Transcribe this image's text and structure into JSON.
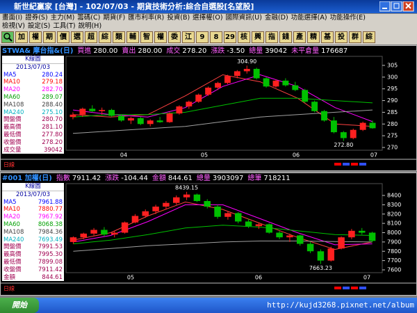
{
  "window": {
    "title": "新世紀贏家 [台灣] - 102/07/03 - 期貨技術分析:綜合自選股[名望股]"
  },
  "menu": {
    "row1": [
      "畫面(I)",
      "證券(S)",
      "主力(M)",
      "籌碼(C)",
      "期貨(F)",
      "匯市利率(R)",
      "投資(B)",
      "選擇權(O)",
      "國際資訊(U)",
      "金融(D)",
      "功能選擇(A)",
      "功能操作(E)"
    ],
    "row2": [
      "檢視(V)",
      "設定(S)",
      "工具(T)",
      "說明(H)"
    ]
  },
  "toolbar": [
    "加",
    "權",
    "期",
    "價",
    "選",
    "超",
    "綜",
    "類",
    "輔",
    "智",
    "權",
    "委",
    "江",
    "9",
    "8",
    "29",
    "核",
    "興",
    "指",
    "錢",
    "產",
    "精",
    "基",
    "投",
    "群",
    "綜"
  ],
  "panels": [
    {
      "header": {
        "symbol": "STWA& 摩台指&(日)",
        "fields": [
          {
            "label": "買進",
            "value": "280.00"
          },
          {
            "label": "賣出",
            "value": "280.00"
          },
          {
            "label": "成交",
            "value": "278.20"
          },
          {
            "label": "漲跌",
            "value": "-3.50"
          },
          {
            "label": "總量",
            "value": "39042"
          },
          {
            "label": "未平倉量",
            "value": "176687"
          }
        ]
      },
      "legend": {
        "title": "K線圖",
        "date": "2013/07/03",
        "items": [
          {
            "label": "MA5",
            "value": "280.24",
            "color": "#0000ff"
          },
          {
            "label": "MA10",
            "value": "279.18",
            "color": "#ff0000"
          },
          {
            "label": "MA20",
            "value": "282.70",
            "color": "#ff00ff"
          },
          {
            "label": "MA60",
            "value": "289.07",
            "color": "#00a000"
          },
          {
            "label": "MA108",
            "value": "288.40",
            "color": "#404040"
          },
          {
            "label": "MA240",
            "value": "275.10",
            "color": "#00b0c0"
          },
          {
            "label": "開盤價",
            "value": "280.70",
            "color": "#a00050"
          },
          {
            "label": "最高價",
            "value": "281.10",
            "color": "#a00050"
          },
          {
            "label": "最低價",
            "value": "277.80",
            "color": "#a00050"
          },
          {
            "label": "收盤價",
            "value": "278.20",
            "color": "#a00050"
          },
          {
            "label": "成交量",
            "value": "39042",
            "color": "#a00050"
          }
        ]
      },
      "yticks": [
        270,
        275,
        280,
        285,
        290,
        295,
        300,
        305
      ],
      "months": [
        "04",
        "05",
        "06",
        "07"
      ],
      "high": {
        "value": 304.9,
        "label": "304.90"
      },
      "low": {
        "value": 272.8,
        "label": "272.80"
      },
      "candles": [
        [
          283,
          285,
          282,
          284
        ],
        [
          284,
          287,
          283,
          286.5
        ],
        [
          286.5,
          288,
          285,
          285.5
        ],
        [
          285.5,
          287,
          284,
          286
        ],
        [
          286,
          286.5,
          283,
          283.5
        ],
        [
          283.5,
          284,
          281,
          281.5
        ],
        [
          281.5,
          283,
          280,
          282.5
        ],
        [
          282.5,
          283,
          279.5,
          280
        ],
        [
          280,
          282,
          279,
          281.5
        ],
        [
          281.5,
          283,
          280.5,
          280.8
        ],
        [
          280.8,
          285,
          280.5,
          284.5
        ],
        [
          284.5,
          288,
          284,
          287.5
        ],
        [
          287.5,
          290,
          286.5,
          289.5
        ],
        [
          289.5,
          293,
          289,
          292.5
        ],
        [
          292.5,
          296,
          292,
          295.5
        ],
        [
          295.5,
          298,
          294.5,
          297.5
        ],
        [
          297.5,
          301,
          297,
          300.5
        ],
        [
          300.5,
          303,
          299.5,
          302.5
        ],
        [
          302.5,
          304.9,
          301.5,
          303.5
        ],
        [
          303.5,
          304,
          299,
          299.5
        ],
        [
          299.5,
          300,
          295.5,
          296
        ],
        [
          296,
          299,
          295.5,
          298.5
        ],
        [
          298.5,
          299.5,
          296,
          296.5
        ],
        [
          296.5,
          298,
          294,
          294.5
        ],
        [
          294.5,
          295,
          289,
          289.5
        ],
        [
          289.5,
          290,
          285,
          285.5
        ],
        [
          285.5,
          286,
          281,
          281.5
        ],
        [
          281.5,
          283,
          276,
          276.5
        ],
        [
          276.5,
          277,
          272.8,
          274
        ],
        [
          274,
          278,
          273.5,
          277.5
        ],
        [
          277.5,
          281,
          277,
          280.5
        ],
        [
          280.5,
          281.5,
          278,
          278.2
        ]
      ],
      "ma_lines": [
        {
          "color": "#ff4040",
          "values": [
            284,
            283,
            284,
            292,
            301,
            298,
            291,
            280,
            279
          ]
        },
        {
          "color": "#ff00ff",
          "values": [
            286,
            284,
            283,
            287,
            296,
            301,
            296,
            287,
            281
          ]
        },
        {
          "color": "#00c000",
          "values": [
            283,
            284,
            284,
            285,
            288,
            291,
            291,
            290,
            289
          ]
        },
        {
          "color": "#a0a0a0",
          "values": [
            276,
            277,
            278,
            279,
            281,
            283,
            284,
            285,
            286
          ]
        }
      ],
      "strip_label": "日線"
    },
    {
      "header": {
        "symbol": "#001 加權(日)",
        "fields": [
          {
            "label": "指數",
            "value": "7911.42"
          },
          {
            "label": "漲跌",
            "value": "-104.44"
          },
          {
            "label": "金額",
            "value": "844.61"
          },
          {
            "label": "總量",
            "value": "3903097"
          },
          {
            "label": "總筆",
            "value": "718211"
          }
        ]
      },
      "legend": {
        "title": "K線圖",
        "date": "2013/07/03",
        "items": [
          {
            "label": "MA5",
            "value": "7961.88",
            "color": "#0000ff"
          },
          {
            "label": "MA10",
            "value": "7880.77",
            "color": "#ff0000"
          },
          {
            "label": "MA20",
            "value": "7967.92",
            "color": "#ff00ff"
          },
          {
            "label": "MA60",
            "value": "8068.38",
            "color": "#00a000"
          },
          {
            "label": "MA108",
            "value": "7984.36",
            "color": "#404040"
          },
          {
            "label": "MA240",
            "value": "7693.49",
            "color": "#00b0c0"
          },
          {
            "label": "開盤價",
            "value": "7991.53",
            "color": "#a00050"
          },
          {
            "label": "最高價",
            "value": "7995.30",
            "color": "#a00050"
          },
          {
            "label": "最低價",
            "value": "7899.08",
            "color": "#a00050"
          },
          {
            "label": "收盤價",
            "value": "7911.42",
            "color": "#a00050"
          },
          {
            "label": "金額",
            "value": "844.61",
            "color": "#a00050"
          }
        ]
      },
      "yticks": [
        7600,
        7700,
        7800,
        7900,
        8000,
        8100,
        8200,
        8300,
        8400
      ],
      "months": [
        "05",
        "06",
        "07"
      ],
      "high": {
        "value": 8439.15,
        "label": "8439.15"
      },
      "low": {
        "value": 7663.23,
        "label": "7663.23"
      },
      "candles": [
        [
          7900,
          7960,
          7880,
          7950
        ],
        [
          7950,
          8000,
          7930,
          7990
        ],
        [
          7990,
          8050,
          7970,
          8030
        ],
        [
          8030,
          8060,
          7960,
          7980
        ],
        [
          7980,
          8020,
          7950,
          8000
        ],
        [
          8000,
          8120,
          7990,
          8110
        ],
        [
          8110,
          8200,
          8100,
          8180
        ],
        [
          8180,
          8250,
          8160,
          8230
        ],
        [
          8230,
          8300,
          8200,
          8280
        ],
        [
          8280,
          8340,
          8250,
          8320
        ],
        [
          8320,
          8400,
          8300,
          8380
        ],
        [
          8380,
          8439.15,
          8350,
          8410
        ],
        [
          8410,
          8420,
          8330,
          8340
        ],
        [
          8340,
          8360,
          8260,
          8280
        ],
        [
          8280,
          8300,
          8150,
          8170
        ],
        [
          8170,
          8230,
          8140,
          8210
        ],
        [
          8210,
          8220,
          8100,
          8120
        ],
        [
          8120,
          8150,
          8050,
          8070
        ],
        [
          8070,
          8110,
          8040,
          8090
        ],
        [
          8090,
          8100,
          7990,
          8000
        ],
        [
          8000,
          8020,
          7930,
          7950
        ],
        [
          7950,
          7990,
          7900,
          7970
        ],
        [
          7970,
          7980,
          7860,
          7880
        ],
        [
          7880,
          7900,
          7780,
          7800
        ],
        [
          7800,
          7820,
          7663.23,
          7700
        ],
        [
          7700,
          7850,
          7690,
          7830
        ],
        [
          7830,
          7960,
          7820,
          7950
        ],
        [
          7950,
          8040,
          7930,
          8020
        ],
        [
          8020,
          8050,
          7980,
          8000
        ],
        [
          8000,
          8010,
          7900,
          7911.42
        ]
      ],
      "ma_lines": [
        {
          "color": "#ff4040",
          "values": [
            7920,
            8000,
            8180,
            8330,
            8250,
            8100,
            7950,
            7820,
            7900
          ]
        },
        {
          "color": "#ff00ff",
          "values": [
            7900,
            7970,
            8120,
            8300,
            8300,
            8150,
            8000,
            7870,
            7880
          ]
        },
        {
          "color": "#00c000",
          "values": [
            7880,
            7920,
            7980,
            8050,
            8080,
            8060,
            8020,
            7980,
            7970
          ]
        },
        {
          "color": "#a0a0a0",
          "values": [
            7800,
            7830,
            7860,
            7880,
            7900,
            7910,
            7910,
            7905,
            7900
          ]
        }
      ],
      "strip_label": "日線"
    }
  ],
  "taskbar": {
    "start": "開始",
    "url": "http://kujd3268.pixnet.net/album"
  }
}
